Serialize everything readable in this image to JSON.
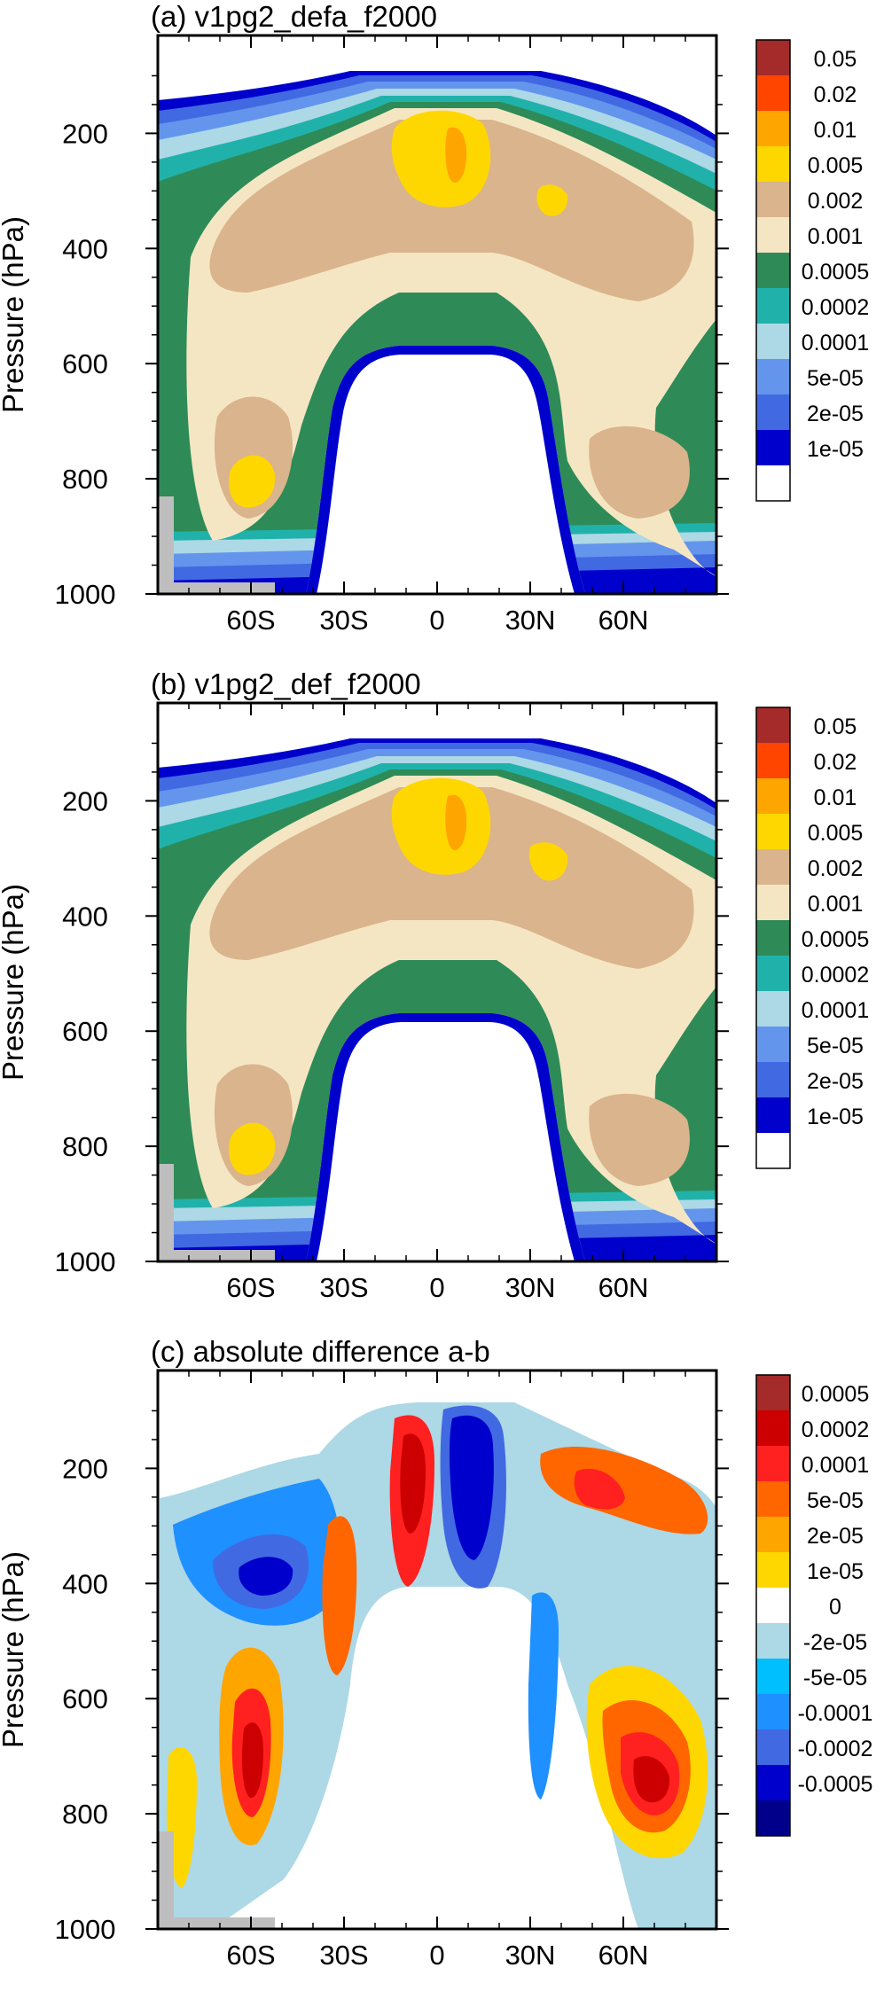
{
  "chart_data": [
    {
      "type": "contour",
      "title": "(a) v1pg2_defa_f2000",
      "ylabel": "Pressure (hPa)",
      "xticks": [
        "60S",
        "30S",
        "0",
        "30N",
        "60N"
      ],
      "xtick_values": [
        -60,
        -30,
        0,
        30,
        60
      ],
      "xlim": [
        -90,
        90
      ],
      "yticks": [
        "200",
        "400",
        "600",
        "800",
        "1000"
      ],
      "ytick_values": [
        200,
        400,
        600,
        800,
        1000
      ],
      "ylim": [
        1000,
        30
      ],
      "colorbar_labels": [
        "0.05",
        "0.02",
        "0.01",
        "0.005",
        "0.002",
        "0.001",
        "0.0005",
        "0.0002",
        "0.0001",
        "5e-05",
        "2e-05",
        "1e-05"
      ],
      "colorbar_colors": [
        "#a52a2a",
        "#ff4500",
        "#ffa500",
        "#ffd700",
        "#dab48c",
        "#f5e6c3",
        "#2e8b57",
        "#20b2aa",
        "#add8e6",
        "#6495ed",
        "#4169e1",
        "#0000cd",
        "#ffffff"
      ]
    },
    {
      "type": "contour",
      "title": "(b) v1pg2_def_f2000",
      "ylabel": "Pressure (hPa)",
      "xticks": [
        "60S",
        "30S",
        "0",
        "30N",
        "60N"
      ],
      "xtick_values": [
        -60,
        -30,
        0,
        30,
        60
      ],
      "xlim": [
        -90,
        90
      ],
      "yticks": [
        "200",
        "400",
        "600",
        "800",
        "1000"
      ],
      "ytick_values": [
        200,
        400,
        600,
        800,
        1000
      ],
      "ylim": [
        1000,
        30
      ],
      "colorbar_labels": [
        "0.05",
        "0.02",
        "0.01",
        "0.005",
        "0.002",
        "0.001",
        "0.0005",
        "0.0002",
        "0.0001",
        "5e-05",
        "2e-05",
        "1e-05"
      ],
      "colorbar_colors": [
        "#a52a2a",
        "#ff4500",
        "#ffa500",
        "#ffd700",
        "#dab48c",
        "#f5e6c3",
        "#2e8b57",
        "#20b2aa",
        "#add8e6",
        "#6495ed",
        "#4169e1",
        "#0000cd",
        "#ffffff"
      ]
    },
    {
      "type": "contour",
      "title": "(c) absolute difference a-b",
      "ylabel": "Pressure (hPa)",
      "xticks": [
        "60S",
        "30S",
        "0",
        "30N",
        "60N"
      ],
      "xtick_values": [
        -60,
        -30,
        0,
        30,
        60
      ],
      "xlim": [
        -90,
        90
      ],
      "yticks": [
        "200",
        "400",
        "600",
        "800",
        "1000"
      ],
      "ytick_values": [
        200,
        400,
        600,
        800,
        1000
      ],
      "ylim": [
        1000,
        30
      ],
      "colorbar_labels": [
        "0.0005",
        "0.0002",
        "0.0001",
        "5e-05",
        "2e-05",
        "1e-05",
        "0",
        "-2e-05",
        "-5e-05",
        "-0.0001",
        "-0.0002",
        "-0.0005"
      ],
      "colorbar_colors": [
        "#a52a2a",
        "#cc0000",
        "#ff2020",
        "#ff6600",
        "#ffa500",
        "#ffd700",
        "#ffffff",
        "#add8e6",
        "#00bfff",
        "#1e90ff",
        "#4169e1",
        "#0000cd",
        "#00008b"
      ]
    }
  ]
}
